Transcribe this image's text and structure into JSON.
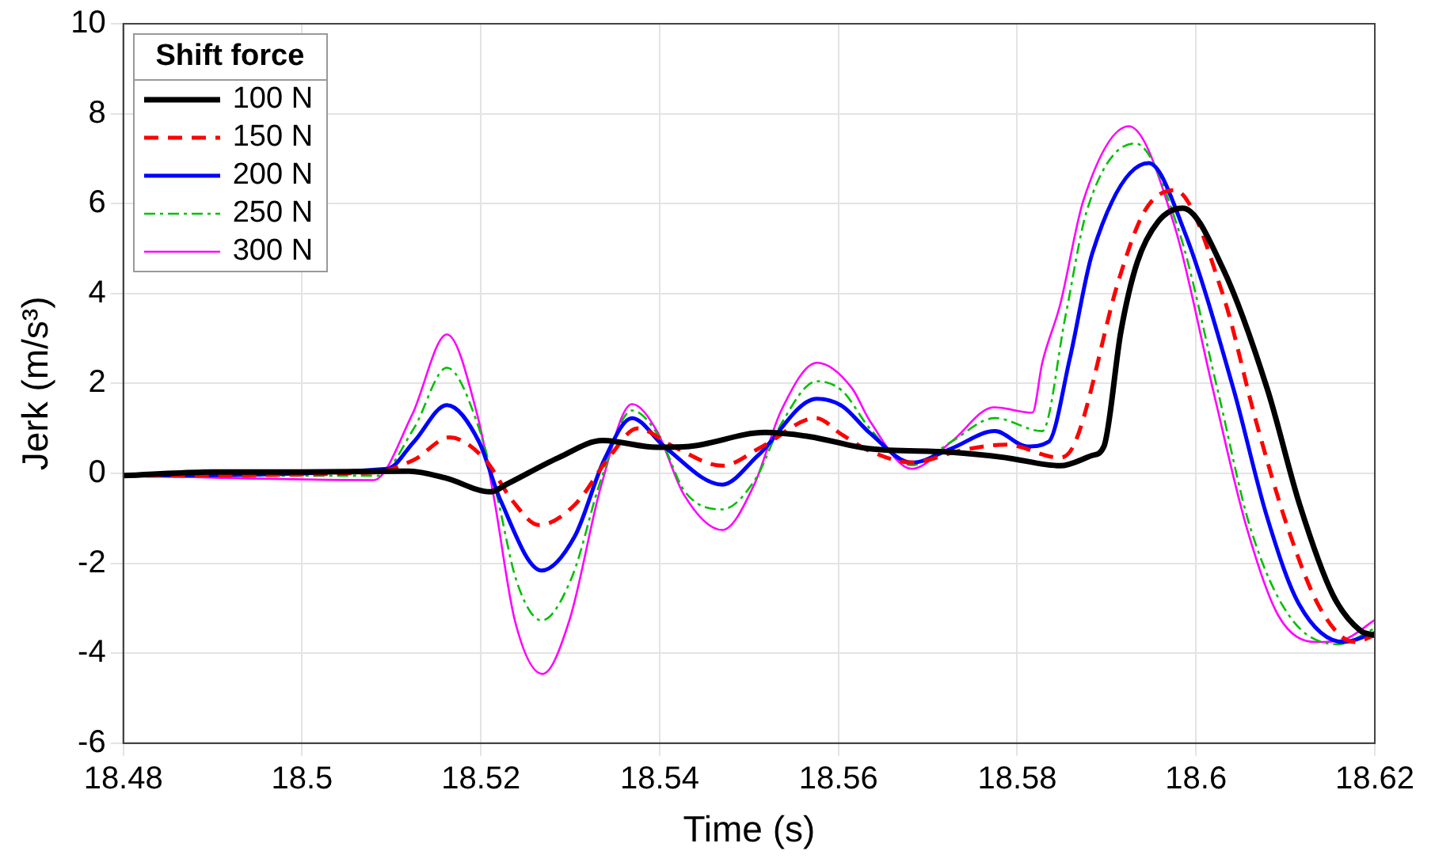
{
  "chart_data": {
    "type": "line",
    "xlabel": "Time (s)",
    "ylabel": "Jerk (m/s³)",
    "legend_title": "Shift force",
    "legend": "top left",
    "grid": true,
    "xlim": [
      18.48,
      18.62
    ],
    "xticks": [
      18.48,
      18.5,
      18.52,
      18.54,
      18.56,
      18.58,
      18.6,
      18.62
    ],
    "ylim": [
      -6,
      10
    ],
    "yticks": [
      -6,
      -4,
      -2,
      0,
      2,
      4,
      6,
      8,
      10
    ],
    "series": [
      {
        "name": "100 N",
        "color": "#000000",
        "line_style": "solid",
        "x": [
          18.48,
          18.49,
          18.5,
          18.512,
          18.516,
          18.5211,
          18.5229,
          18.5287,
          18.5336,
          18.5397,
          18.5433,
          18.5518,
          18.5567,
          18.5634,
          18.5726,
          18.5787,
          18.5848,
          18.5884,
          18.5897,
          18.5916,
          18.5934,
          18.5958,
          18.5985,
          18.603,
          18.608,
          18.6116,
          18.6153,
          18.6184,
          18.62
        ],
        "values": [
          -0.05,
          0.03,
          0.03,
          0.05,
          -0.1,
          -0.41,
          -0.24,
          0.35,
          0.73,
          0.58,
          0.6,
          0.91,
          0.82,
          0.55,
          0.47,
          0.35,
          0.17,
          0.4,
          0.6,
          3.16,
          4.68,
          5.61,
          5.9,
          4.56,
          1.86,
          -0.7,
          -2.7,
          -3.5,
          -3.6
        ]
      },
      {
        "name": "150 N",
        "color": "#ff0000",
        "line_style": "dashed",
        "x": [
          18.48,
          18.508,
          18.5125,
          18.5165,
          18.5205,
          18.5235,
          18.5265,
          18.5305,
          18.5345,
          18.5375,
          18.5415,
          18.547,
          18.5515,
          18.5575,
          18.5604,
          18.5635,
          18.5682,
          18.5735,
          18.5787,
          18.5848,
          18.5865,
          18.5914,
          18.5943,
          18.5976,
          18.603,
          18.6067,
          18.6104,
          18.614,
          18.6177,
          18.62
        ],
        "values": [
          -0.05,
          0.02,
          0.3,
          0.8,
          0.3,
          -0.6,
          -1.15,
          -0.7,
          0.4,
          1.0,
          0.6,
          0.17,
          0.6,
          1.23,
          0.86,
          0.5,
          0.24,
          0.5,
          0.64,
          0.35,
          0.7,
          4.33,
          5.85,
          6.3,
          3.98,
          1.17,
          -1.29,
          -3.04,
          -3.75,
          -3.6
        ]
      },
      {
        "name": "200 N",
        "color": "#0000ff",
        "line_style": "solid",
        "x": [
          18.48,
          18.5095,
          18.5125,
          18.5162,
          18.5198,
          18.5222,
          18.5268,
          18.5305,
          18.5338,
          18.5369,
          18.5405,
          18.547,
          18.551,
          18.5576,
          18.5604,
          18.5635,
          18.5682,
          18.5726,
          18.5775,
          18.5811,
          18.5835,
          18.5859,
          18.5884,
          18.5947,
          18.5987,
          18.6042,
          18.6079,
          18.6115,
          18.6165,
          18.62
        ],
        "values": [
          -0.05,
          0.1,
          0.7,
          1.52,
          0.7,
          -0.6,
          -2.16,
          -1.4,
          0.3,
          1.23,
          0.6,
          -0.25,
          0.4,
          1.66,
          1.5,
          0.9,
          0.24,
          0.55,
          0.94,
          0.6,
          0.7,
          2.57,
          4.9,
          6.9,
          5.38,
          1.87,
          -0.94,
          -2.9,
          -3.75,
          -3.55
        ]
      },
      {
        "name": "250 N",
        "color": "#00c000",
        "line_style": "dotted",
        "x": [
          18.48,
          18.5085,
          18.5125,
          18.5162,
          18.5198,
          18.5218,
          18.524,
          18.5268,
          18.5302,
          18.5335,
          18.5369,
          18.54,
          18.5428,
          18.547,
          18.5508,
          18.5536,
          18.5576,
          18.5604,
          18.5635,
          18.5682,
          18.5726,
          18.5775,
          18.5828,
          18.5854,
          18.5878,
          18.5932,
          18.5981,
          18.6024,
          18.606,
          18.6104,
          18.6158,
          18.62
        ],
        "values": [
          -0.05,
          -0.05,
          1.0,
          2.35,
          1.0,
          -0.5,
          -2.4,
          -3.27,
          -2.3,
          -0.1,
          1.4,
          0.8,
          -0.4,
          -0.8,
          -0.1,
          1.1,
          2.05,
          1.84,
          1.0,
          0.18,
          0.7,
          1.23,
          0.94,
          3.5,
          5.85,
          7.34,
          5.38,
          1.87,
          -1.16,
          -3.16,
          -3.8,
          -3.45
        ]
      },
      {
        "name": "300 N",
        "color": "#ff00ff",
        "line_style": "solid",
        "x": [
          18.48,
          18.508,
          18.5123,
          18.5162,
          18.5196,
          18.5214,
          18.5238,
          18.5269,
          18.5299,
          18.5335,
          18.5369,
          18.5397,
          18.5427,
          18.547,
          18.5506,
          18.5536,
          18.5576,
          18.5615,
          18.5635,
          18.5682,
          18.5726,
          18.5774,
          18.5817,
          18.5828,
          18.5848,
          18.5874,
          18.5925,
          18.5976,
          18.6019,
          18.6056,
          18.6092,
          18.6134,
          18.6165,
          18.62
        ],
        "values": [
          -0.05,
          -0.15,
          1.3,
          3.09,
          1.3,
          -0.47,
          -3.27,
          -4.46,
          -3.27,
          -0.24,
          1.54,
          0.94,
          -0.47,
          -1.26,
          -0.24,
          1.4,
          2.46,
          1.9,
          1.17,
          0.1,
          0.7,
          1.47,
          1.35,
          2.46,
          3.75,
          6.07,
          7.72,
          5.5,
          1.86,
          -1.16,
          -3.16,
          -3.75,
          -3.7,
          -3.26
        ]
      }
    ]
  }
}
